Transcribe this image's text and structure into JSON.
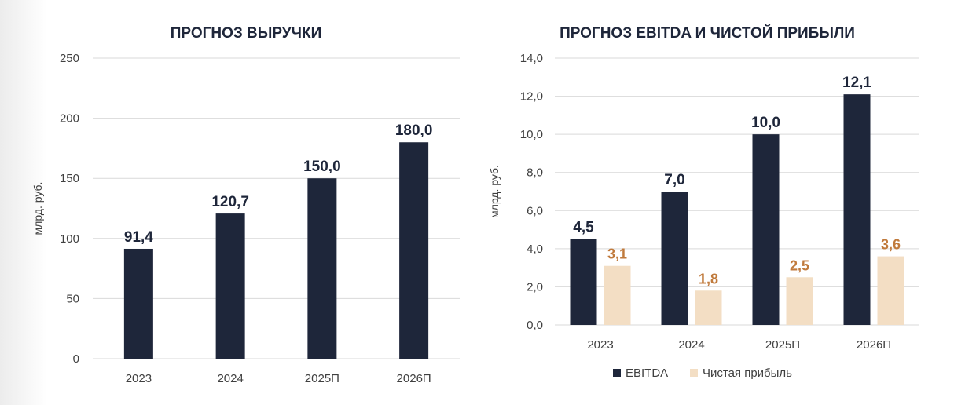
{
  "colors": {
    "navy": "#1e263a",
    "beige": "#f3dec4",
    "net_label": "#c07a3c",
    "grid": "#d9d9d9",
    "axis_text": "#404040",
    "title": "#1e263a"
  },
  "chart_data": [
    {
      "type": "bar",
      "title": "ПРОГНОЗ ВЫРУЧКИ",
      "xlabel": "",
      "ylabel": "млрд. руб.",
      "categories": [
        "2023",
        "2024",
        "2025П",
        "2026П"
      ],
      "values": [
        91.4,
        120.7,
        150.0,
        180.0
      ],
      "value_labels": [
        "91,4",
        "120,7",
        "150,0",
        "180,0"
      ],
      "ylim": [
        0,
        250
      ],
      "yticks": [
        0,
        50,
        100,
        150,
        200,
        250
      ],
      "ytick_labels": [
        "0",
        "50",
        "100",
        "150",
        "200",
        "250"
      ],
      "grid": true,
      "legend": "none"
    },
    {
      "type": "bar",
      "title": "ПРОГНОЗ EBITDA И ЧИСТОЙ ПРИБЫЛИ",
      "xlabel": "",
      "ylabel": "млрд. руб.",
      "categories": [
        "2023",
        "2024",
        "2025П",
        "2026П"
      ],
      "series": [
        {
          "name": "EBITDA",
          "values": [
            4.5,
            7.0,
            10.0,
            12.1
          ],
          "value_labels": [
            "4,5",
            "7,0",
            "10,0",
            "12,1"
          ]
        },
        {
          "name": "Чистая прибыль",
          "values": [
            3.1,
            1.8,
            2.5,
            3.6
          ],
          "value_labels": [
            "3,1",
            "1,8",
            "2,5",
            "3,6"
          ]
        }
      ],
      "ylim": [
        0,
        14
      ],
      "yticks": [
        0,
        2,
        4,
        6,
        8,
        10,
        12,
        14
      ],
      "ytick_labels": [
        "0,0",
        "2,0",
        "4,0",
        "6,0",
        "8,0",
        "10,0",
        "12,0",
        "14,0"
      ],
      "grid": true,
      "legend": "bottom-center"
    }
  ]
}
